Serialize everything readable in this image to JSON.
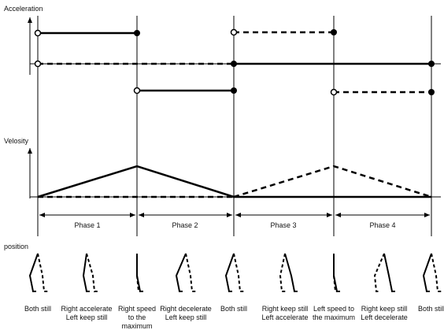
{
  "labels": {
    "acceleration": "Acceleration",
    "velocity": "Velosity",
    "position": "position"
  },
  "phases": [
    "Phase 1",
    "Phase 2",
    "Phase 3",
    "Phase 4"
  ],
  "captions": [
    [
      "Both still"
    ],
    [
      "Right accelerate",
      "Left keep still"
    ],
    [
      "Right speed",
      "to the",
      "maximum"
    ],
    [
      "Right decelerate",
      "Left keep still"
    ],
    [
      "Both still"
    ],
    [
      "Right keep still",
      "Left accelerate"
    ],
    [
      "Left speed to",
      "the maximum"
    ],
    [
      "Right keep still",
      "Left decelerate"
    ],
    [
      "Both still"
    ]
  ]
}
